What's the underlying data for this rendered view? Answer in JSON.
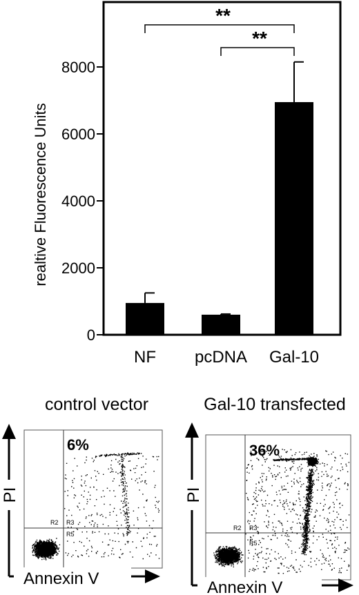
{
  "chart_data": [
    {
      "type": "bar",
      "title": "",
      "ylabel": "realtive Fluorescence Units",
      "xlabel": "",
      "categories": [
        "NF",
        "pcDNA",
        "Gal-10"
      ],
      "values": [
        950,
        600,
        6950
      ],
      "error_bars": [
        300,
        20,
        1200
      ],
      "ylim": [
        0,
        10000
      ],
      "yticks": [
        0,
        2000,
        4000,
        6000,
        8000
      ],
      "bar_color": "#000000",
      "significance": [
        {
          "from": "NF",
          "to": "Gal-10",
          "label": "**"
        },
        {
          "from": "pcDNA",
          "to": "Gal-10",
          "label": "**"
        }
      ]
    },
    {
      "type": "scatter",
      "title": "control vector",
      "xlabel": "Annexin V",
      "ylabel": "PI",
      "quadrant_percent": "6%",
      "regions": [
        "R2",
        "R3",
        "R5"
      ],
      "point_color": "#000000"
    },
    {
      "type": "scatter",
      "title": "Gal-10 transfected",
      "xlabel": "Annexin V",
      "ylabel": "PI",
      "quadrant_percent": "36%",
      "regions": [
        "R2",
        "R3",
        "R5"
      ],
      "point_color": "#000000"
    }
  ]
}
